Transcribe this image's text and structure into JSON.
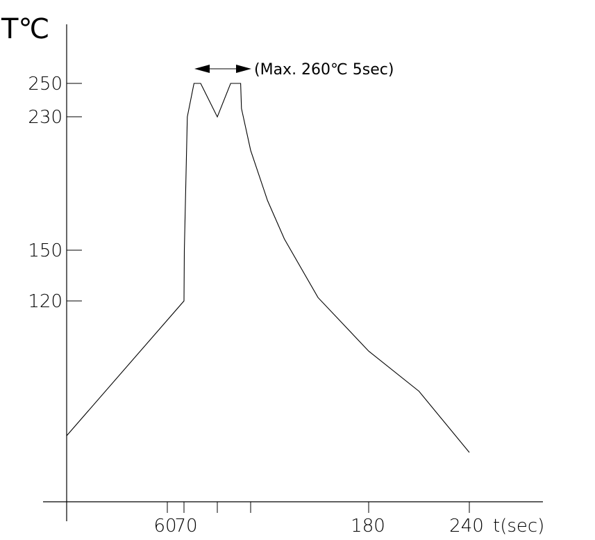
{
  "chart_data": {
    "type": "line",
    "title": "",
    "ylabel": "T℃",
    "xlabel": "t(sec)",
    "y_tick_labels": [
      "250",
      "230",
      "150",
      "120"
    ],
    "x_tick_labels": [
      "60",
      "70",
      "180",
      "240"
    ],
    "annotation": "(Max. 260℃ 5sec)",
    "grid": false,
    "legend": "none",
    "series": [
      {
        "values": [
          [
            0,
            25
          ],
          [
            70,
            120
          ],
          [
            70.2,
            150
          ],
          [
            72,
            230
          ],
          [
            76,
            250
          ],
          [
            80,
            250
          ],
          [
            90,
            230
          ],
          [
            98,
            250
          ],
          [
            104,
            250
          ],
          [
            104.5,
            235
          ],
          [
            110,
            210
          ],
          [
            120,
            180
          ],
          [
            130,
            157
          ],
          [
            150,
            122
          ],
          [
            180,
            90
          ],
          [
            210,
            66
          ],
          [
            240,
            50
          ]
        ]
      }
    ]
  },
  "colors": {
    "line": "#000000",
    "background": "#ffffff"
  }
}
